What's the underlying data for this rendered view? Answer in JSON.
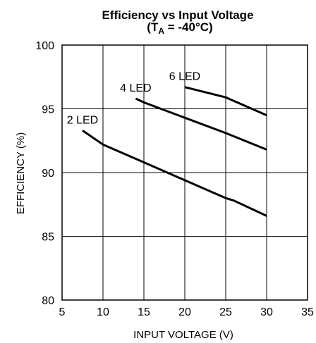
{
  "chart_data": {
    "type": "line",
    "title": "Efficiency vs Input Voltage",
    "subtitle": {
      "prefix": "(T",
      "subscript": "A",
      "suffix": " = -40°C)"
    },
    "xlabel": "INPUT VOLTAGE (V)",
    "ylabel": "EFFICIENCY (%)",
    "xlim": [
      5,
      35
    ],
    "ylim": [
      80,
      100
    ],
    "xticks": [
      5,
      10,
      15,
      20,
      25,
      30,
      35
    ],
    "yticks": [
      80,
      85,
      90,
      95,
      100
    ],
    "grid": true,
    "line_color": "#000000",
    "series": [
      {
        "name": "2 LED",
        "x": [
          7.5,
          10,
          15,
          20,
          25,
          26,
          30
        ],
        "y": [
          93.3,
          92.2,
          90.8,
          89.4,
          88.0,
          87.8,
          86.6
        ]
      },
      {
        "name": "4 LED",
        "x": [
          14,
          15,
          20,
          25,
          30
        ],
        "y": [
          95.8,
          95.5,
          94.3,
          93.1,
          91.8
        ]
      },
      {
        "name": "6 LED",
        "x": [
          20,
          25,
          30
        ],
        "y": [
          96.7,
          95.9,
          94.5
        ]
      }
    ]
  }
}
